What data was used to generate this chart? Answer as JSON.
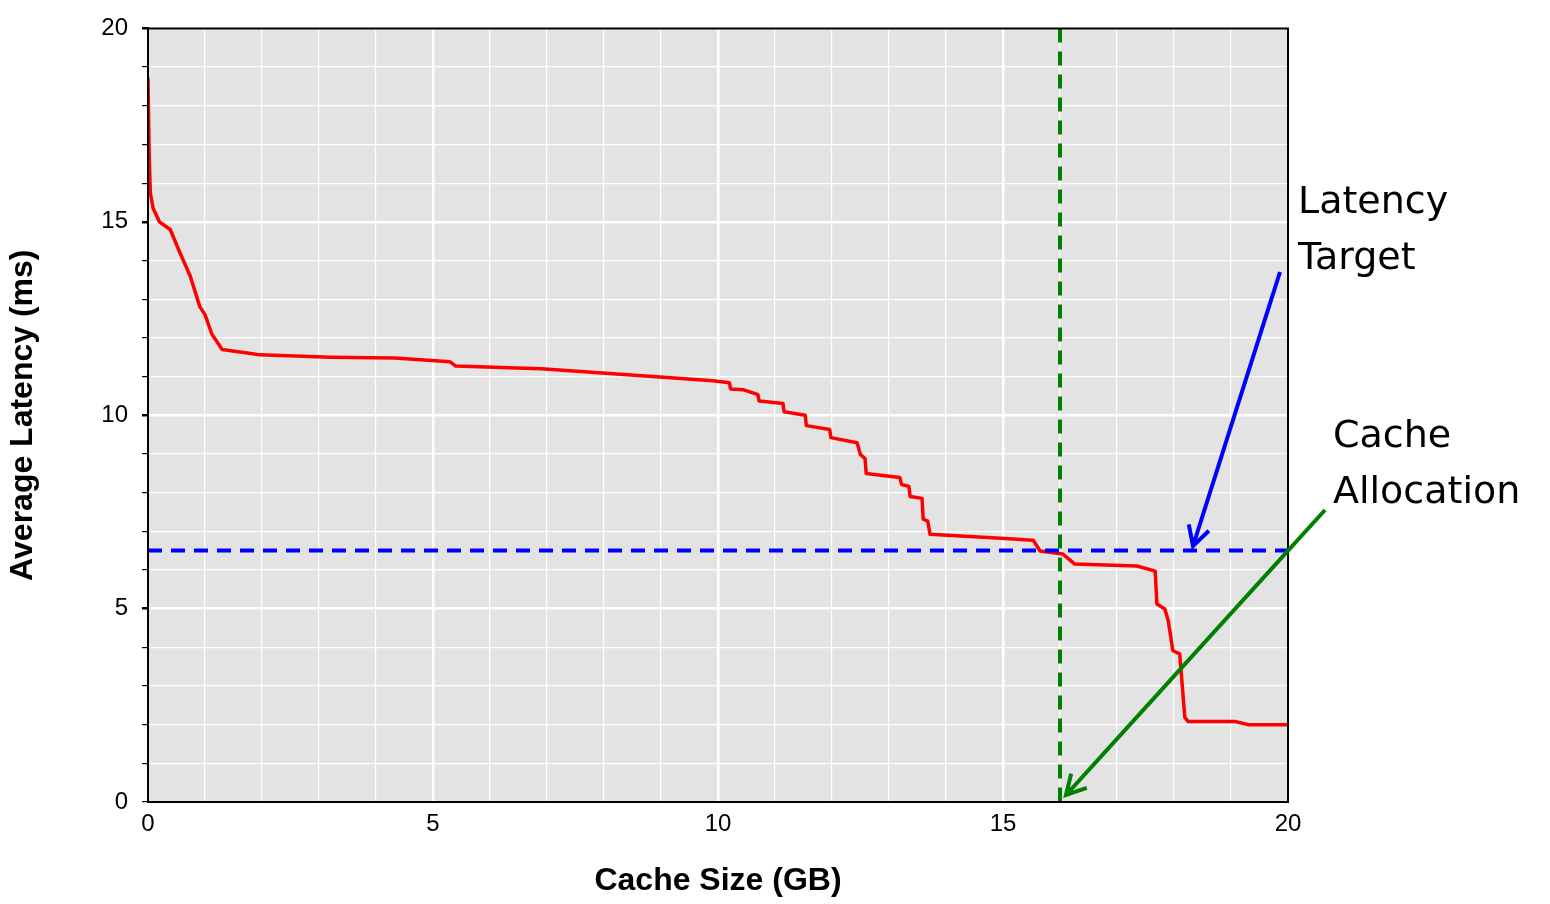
{
  "chart_data": {
    "type": "line",
    "xlabel": "Cache Size (GB)",
    "ylabel": "Average Latency (ms)",
    "series": [
      {
        "color": "#ff0000",
        "x": [
          0,
          0.02,
          0.04,
          0.09,
          0.2,
          0.39,
          0.56,
          0.74,
          0.91,
          1.0,
          1.12,
          1.3,
          1.96,
          3.2,
          4.33,
          5.3,
          5.4,
          6.9,
          8.98,
          9.91,
          10.2,
          10.22,
          10.44,
          10.7,
          10.72,
          11.14,
          11.16,
          11.53,
          11.55,
          11.96,
          11.98,
          12.44,
          12.5,
          12.58,
          12.6,
          13.19,
          13.22,
          13.35,
          13.37,
          13.58,
          13.6,
          13.68,
          13.72,
          15.53,
          15.65,
          16.05,
          16.26,
          17.35,
          17.67,
          17.7,
          17.84,
          17.9,
          17.98,
          18.1,
          18.19,
          18.25,
          19.07,
          19.3,
          20
        ],
        "values": [
          18.7,
          16.8,
          15.75,
          15.35,
          15.0,
          14.8,
          14.2,
          13.6,
          12.8,
          12.6,
          12.1,
          11.7,
          11.56,
          11.5,
          11.48,
          11.38,
          11.27,
          11.2,
          10.99,
          10.89,
          10.84,
          10.68,
          10.66,
          10.53,
          10.37,
          10.3,
          10.09,
          10.0,
          9.73,
          9.63,
          9.42,
          9.29,
          8.98,
          8.88,
          8.49,
          8.39,
          8.21,
          8.16,
          7.9,
          7.85,
          7.31,
          7.26,
          6.92,
          6.77,
          6.49,
          6.41,
          6.15,
          6.1,
          5.97,
          5.12,
          4.99,
          4.68,
          3.91,
          3.83,
          2.19,
          2.08,
          2.08,
          2.0,
          2.0
        ]
      }
    ],
    "xlim": [
      0,
      20
    ],
    "ylim": [
      0,
      20
    ],
    "xticks": [
      0,
      {
        "value": 1,
        "label": null
      },
      {
        "value": 2,
        "label": null
      },
      {
        "value": 3,
        "label": null
      },
      {
        "value": 4,
        "label": null
      },
      5,
      {
        "value": 6,
        "label": null
      },
      {
        "value": 7,
        "label": null
      },
      {
        "value": 8,
        "label": null
      },
      {
        "value": 9,
        "label": null
      },
      10,
      {
        "value": 11,
        "label": null
      },
      {
        "value": 12,
        "label": null
      },
      {
        "value": 13,
        "label": null
      },
      {
        "value": 14,
        "label": null
      },
      15,
      {
        "value": 16,
        "label": null
      },
      {
        "value": 17,
        "label": null
      },
      {
        "value": 18,
        "label": null
      },
      {
        "value": 19,
        "label": null
      },
      20
    ],
    "yticks": [
      0,
      {
        "value": 1,
        "label": null
      },
      {
        "value": 2,
        "label": null
      },
      {
        "value": 3,
        "label": null
      },
      {
        "value": 4,
        "label": null
      },
      5,
      {
        "value": 6,
        "label": null
      },
      {
        "value": 7,
        "label": null
      },
      {
        "value": 8,
        "label": null
      },
      {
        "value": 9,
        "label": null
      },
      10,
      {
        "value": 11,
        "label": null
      },
      {
        "value": 12,
        "label": null
      },
      {
        "value": 13,
        "label": null
      },
      {
        "value": 14,
        "label": null
      },
      15,
      {
        "value": 16,
        "label": null
      },
      {
        "value": 17,
        "label": null
      },
      {
        "value": 18,
        "label": null
      },
      {
        "value": 19,
        "label": null
      },
      20
    ],
    "ref_lines": [
      {
        "axis": "y",
        "value": 6.5,
        "label": "Latency Target",
        "color": "#0000ff",
        "line_style": "dashed"
      },
      {
        "axis": "x",
        "value": 16,
        "label": "Cache Allocation",
        "color": "#008000",
        "line_style": "dashed"
      }
    ],
    "grid": true,
    "legend": false,
    "marker": "none",
    "line_style": "solid"
  }
}
